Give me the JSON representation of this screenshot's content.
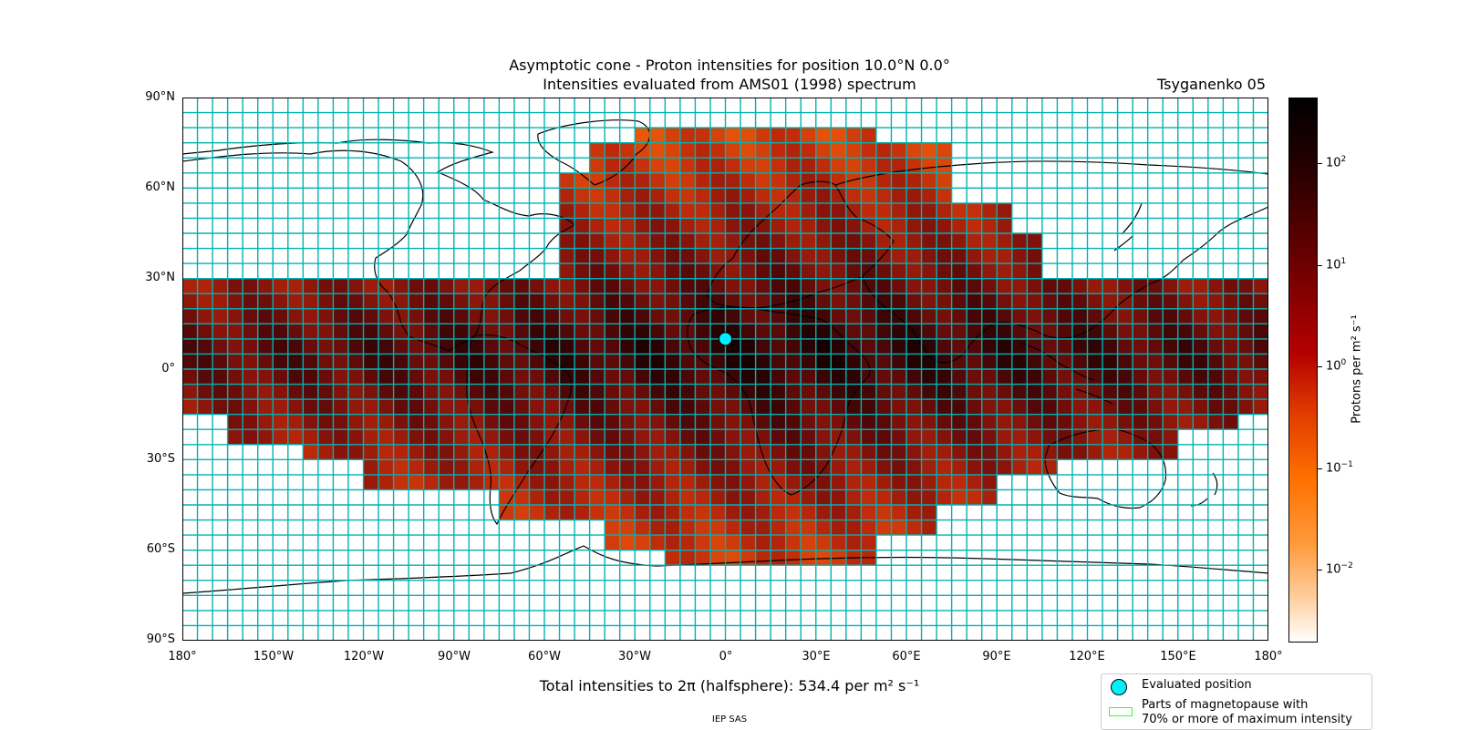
{
  "chart": {
    "title_line1": "Asymptotic cone - Proton intensities for position 10.0°N 0.0°",
    "title_line2": "Intensities evaluated from AMS01 (1998) spectrum",
    "model": "Tsyganenko 05",
    "total_text": "Total intensities to 2π (halfsphere): 534.4 per m² s⁻¹",
    "footer": "IEP SAS"
  },
  "axes": {
    "lat_labels": [
      "90°N",
      "60°N",
      "30°N",
      "0°",
      "30°S",
      "60°S",
      "90°S"
    ],
    "lon_labels": [
      "180°",
      "150°W",
      "120°W",
      "90°W",
      "60°W",
      "30°W",
      "0°",
      "30°E",
      "60°E",
      "90°E",
      "120°E",
      "150°E",
      "180°"
    ]
  },
  "colorbar": {
    "label": "Protons per m² s⁻¹",
    "ticks": [
      "10",
      "10",
      "10",
      "10",
      "10"
    ],
    "exponents": [
      "2",
      "1",
      "0",
      "−1",
      "−2"
    ],
    "log_values": [
      2,
      1,
      0,
      -1,
      -2
    ],
    "log_range": [
      -2.7,
      2.65
    ],
    "colors": [
      "#ffffff",
      "#ffcf9e",
      "#ff9a3c",
      "#ff7000",
      "#e03c00",
      "#b50000",
      "#6b0000",
      "#2a0000",
      "#000000"
    ]
  },
  "legend": {
    "evaluated_position": "Evaluated position",
    "magnetopause_line1": "Parts of magnetopause with",
    "magnetopause_line2": "70% or more of maximum intensity"
  },
  "map": {
    "evaluated_position": {
      "lat": 10.0,
      "lon": 0.0
    },
    "grid_color": "#00b3b3",
    "marker_color": "#00f0ff",
    "cell_lon_step": 5,
    "cell_lat_step": 5
  }
}
